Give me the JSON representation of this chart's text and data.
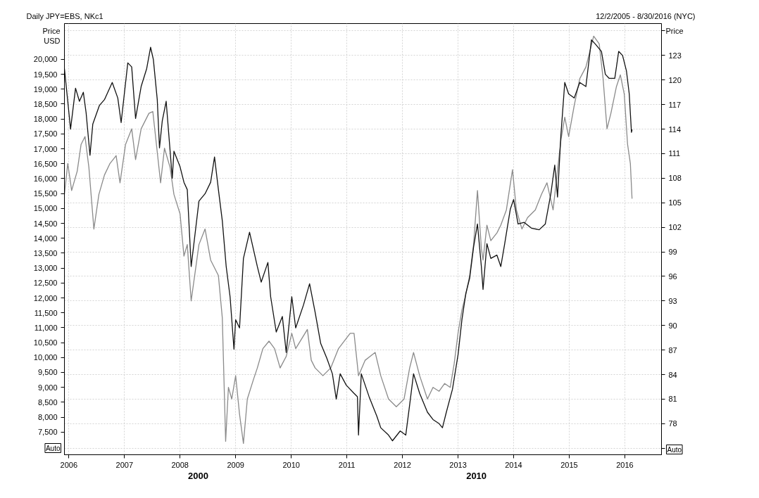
{
  "chart_data": {
    "type": "line",
    "title": "Daily JPY=EBS, NKc1",
    "subtitle": "12/2/2005 - 8/30/2016 (NYC)",
    "ylabel": "Price USD",
    "y2label": "Price",
    "annotations": [
      "Auto",
      "Auto",
      "2000",
      "2010"
    ],
    "series": [
      {
        "color": "#8a8a8a",
        "x": [
          2005.92,
          2005.98,
          2006.05,
          2006.15,
          2006.22,
          2006.29,
          2006.36,
          2006.45,
          2006.54,
          2006.64,
          2006.74,
          2006.85,
          2006.92,
          2007.02,
          2007.13,
          2007.2,
          2007.3,
          2007.44,
          2007.51,
          2007.59,
          2007.65,
          2007.72,
          2007.82,
          2007.89,
          2008.0,
          2008.07,
          2008.13,
          2008.2,
          2008.34,
          2008.45,
          2008.55,
          2008.69,
          2008.76,
          2008.82,
          2008.87,
          2008.93,
          2009.0,
          2009.07,
          2009.14,
          2009.21,
          2009.32,
          2009.39,
          2009.49,
          2009.6,
          2009.7,
          2009.8,
          2009.91,
          2010.01,
          2010.08,
          2010.29,
          2010.36,
          2010.43,
          2010.57,
          2010.71,
          2010.85,
          2011.06,
          2011.13,
          2011.21,
          2011.33,
          2011.51,
          2011.61,
          2011.75,
          2011.89,
          2012.03,
          2012.13,
          2012.2,
          2012.31,
          2012.45,
          2012.55,
          2012.66,
          2012.76,
          2012.86,
          2012.93,
          2013.0,
          2013.07,
          2013.14,
          2013.21,
          2013.28,
          2013.35,
          2013.42,
          2013.45,
          2013.52,
          2013.59,
          2013.7,
          2013.77,
          2013.87,
          2013.98,
          2014.05,
          2014.15,
          2014.25,
          2014.39,
          2014.5,
          2014.6,
          2014.71,
          2014.78,
          2014.85,
          2014.92,
          2014.99,
          2015.09,
          2015.19,
          2015.3,
          2015.44,
          2015.54,
          2015.61,
          2015.68,
          2015.75,
          2015.85,
          2015.92,
          2015.99,
          2016.05,
          2016.1,
          2016.13
        ],
        "values": [
          15470,
          16510,
          15600,
          16250,
          17150,
          17410,
          16380,
          14310,
          15470,
          16120,
          16510,
          16770,
          15860,
          17150,
          17670,
          16640,
          17670,
          18190,
          18250,
          16890,
          15860,
          17020,
          16380,
          15470,
          14820,
          13400,
          13790,
          11900,
          13790,
          14310,
          13270,
          12750,
          11330,
          7190,
          9000,
          8610,
          9390,
          8100,
          7120,
          8610,
          9260,
          9650,
          10300,
          10550,
          10300,
          9650,
          10040,
          10810,
          10300,
          10940,
          9910,
          9650,
          9390,
          9650,
          10300,
          10810,
          10810,
          9390,
          9910,
          10170,
          9390,
          8610,
          8350,
          8610,
          9650,
          10170,
          9390,
          8610,
          9000,
          8870,
          9130,
          9000,
          9780,
          10810,
          11590,
          12110,
          12750,
          13790,
          15600,
          13660,
          13270,
          14440,
          13920,
          14180,
          14440,
          14950,
          16300,
          14950,
          14310,
          14690,
          14950,
          15470,
          15860,
          14950,
          16120,
          17280,
          18060,
          17410,
          18450,
          19350,
          19740,
          20780,
          20520,
          19350,
          17670,
          18190,
          19090,
          19480,
          18840,
          17150,
          16510,
          15340
        ]
      },
      {
        "color": "#111111",
        "axis": "y2",
        "x": [
          2005.92,
          2005.98,
          2006.03,
          2006.12,
          2006.19,
          2006.26,
          2006.31,
          2006.38,
          2006.43,
          2006.55,
          2006.64,
          2006.78,
          2006.88,
          2006.94,
          2007.06,
          2007.13,
          2007.2,
          2007.3,
          2007.4,
          2007.47,
          2007.52,
          2007.59,
          2007.63,
          2007.68,
          2007.75,
          2007.86,
          2007.89,
          2008.0,
          2008.07,
          2008.13,
          2008.2,
          2008.34,
          2008.45,
          2008.55,
          2008.62,
          2008.69,
          2008.76,
          2008.83,
          2008.9,
          2008.97,
          2009.0,
          2009.07,
          2009.14,
          2009.25,
          2009.39,
          2009.46,
          2009.58,
          2009.63,
          2009.73,
          2009.84,
          2009.91,
          2010.01,
          2010.08,
          2010.22,
          2010.33,
          2010.43,
          2010.53,
          2010.64,
          2010.74,
          2010.81,
          2010.88,
          2010.99,
          2011.13,
          2011.19,
          2011.21,
          2011.26,
          2011.4,
          2011.54,
          2011.61,
          2011.75,
          2011.82,
          2011.96,
          2012.06,
          2012.13,
          2012.2,
          2012.31,
          2012.45,
          2012.55,
          2012.66,
          2012.72,
          2012.79,
          2012.9,
          2013.0,
          2013.07,
          2013.14,
          2013.21,
          2013.28,
          2013.35,
          2013.42,
          2013.45,
          2013.52,
          2013.59,
          2013.7,
          2013.77,
          2013.84,
          2013.94,
          2014.0,
          2014.08,
          2014.19,
          2014.32,
          2014.46,
          2014.57,
          2014.67,
          2014.74,
          2014.79,
          2014.85,
          2014.92,
          2014.99,
          2015.09,
          2015.19,
          2015.3,
          2015.4,
          2015.47,
          2015.58,
          2015.65,
          2015.72,
          2015.82,
          2015.89,
          2015.96,
          2016.03,
          2016.08,
          2016.12,
          2016.13
        ],
        "values": [
          121.4,
          117.4,
          114.0,
          119.0,
          117.4,
          118.5,
          116.0,
          110.8,
          114.6,
          116.9,
          117.6,
          119.7,
          117.8,
          114.8,
          122.1,
          121.6,
          115.3,
          119.2,
          121.4,
          124.0,
          122.5,
          117.6,
          111.7,
          115.0,
          117.4,
          108.0,
          111.3,
          109.4,
          107.5,
          106.6,
          97.2,
          105.2,
          106.1,
          107.5,
          110.6,
          106.6,
          102.8,
          97.2,
          93.5,
          87.1,
          90.7,
          89.7,
          98.2,
          101.4,
          97.2,
          95.3,
          97.7,
          93.5,
          89.2,
          91.1,
          86.7,
          93.5,
          89.7,
          92.5,
          95.1,
          91.6,
          87.8,
          86.0,
          84.1,
          81.0,
          84.1,
          82.7,
          81.7,
          81.3,
          76.6,
          84.1,
          81.3,
          78.9,
          77.5,
          76.6,
          75.9,
          77.1,
          76.6,
          80.3,
          84.1,
          81.7,
          79.4,
          78.5,
          78.0,
          77.5,
          79.4,
          82.2,
          86.4,
          90.7,
          93.9,
          95.8,
          99.6,
          102.4,
          97.2,
          94.4,
          100.0,
          98.2,
          98.6,
          97.2,
          100.0,
          104.2,
          105.4,
          102.4,
          102.6,
          101.9,
          101.7,
          102.4,
          106.1,
          109.6,
          105.7,
          113.2,
          119.7,
          118.3,
          117.8,
          119.7,
          119.2,
          124.9,
          124.4,
          123.5,
          120.7,
          120.2,
          120.2,
          123.5,
          123.0,
          121.1,
          118.3,
          113.6,
          113.9
        ]
      }
    ],
    "xlim": [
      2005.92,
      2016.66
    ],
    "xticks": [
      2006,
      2007,
      2008,
      2009,
      2010,
      2011,
      2012,
      2013,
      2014,
      2015,
      2016
    ],
    "ylim": [
      6740,
      21200
    ],
    "yticks": [
      {
        "value": 7500,
        "label": "7,500"
      },
      {
        "value": 8000,
        "label": "8,000"
      },
      {
        "value": 8500,
        "label": "8,500"
      },
      {
        "value": 9000,
        "label": "9,000"
      },
      {
        "value": 9500,
        "label": "9,500"
      },
      {
        "value": 10000,
        "label": "10,000"
      },
      {
        "value": 10500,
        "label": "10,500"
      },
      {
        "value": 11000,
        "label": "11,000"
      },
      {
        "value": 11500,
        "label": "11,500"
      },
      {
        "value": 12000,
        "label": "12,000"
      },
      {
        "value": 12500,
        "label": "12,500"
      },
      {
        "value": 13000,
        "label": "13,000"
      },
      {
        "value": 13500,
        "label": "13,500"
      },
      {
        "value": 14000,
        "label": "14,000"
      },
      {
        "value": 14500,
        "label": "14,500"
      },
      {
        "value": 15000,
        "label": "15,000"
      },
      {
        "value": 15500,
        "label": "15,500"
      },
      {
        "value": 16000,
        "label": "16,000"
      },
      {
        "value": 16500,
        "label": "16,500"
      },
      {
        "value": 17000,
        "label": "17,000"
      },
      {
        "value": 17500,
        "label": "17,500"
      },
      {
        "value": 18000,
        "label": "18,000"
      },
      {
        "value": 18500,
        "label": "18,500"
      },
      {
        "value": 19000,
        "label": "19,000"
      },
      {
        "value": 19500,
        "label": "19,500"
      },
      {
        "value": 20000,
        "label": "20,000"
      }
    ],
    "y2lim": [
      74.2,
      126.9
    ],
    "y2ticks": [
      {
        "value": 75,
        "label": null
      },
      78,
      81,
      84,
      87,
      90,
      93,
      96,
      99,
      102,
      105,
      108,
      111,
      114,
      117,
      120,
      123,
      {
        "value": 126,
        "label": null
      }
    ],
    "grid": true,
    "line_style": "solid"
  }
}
